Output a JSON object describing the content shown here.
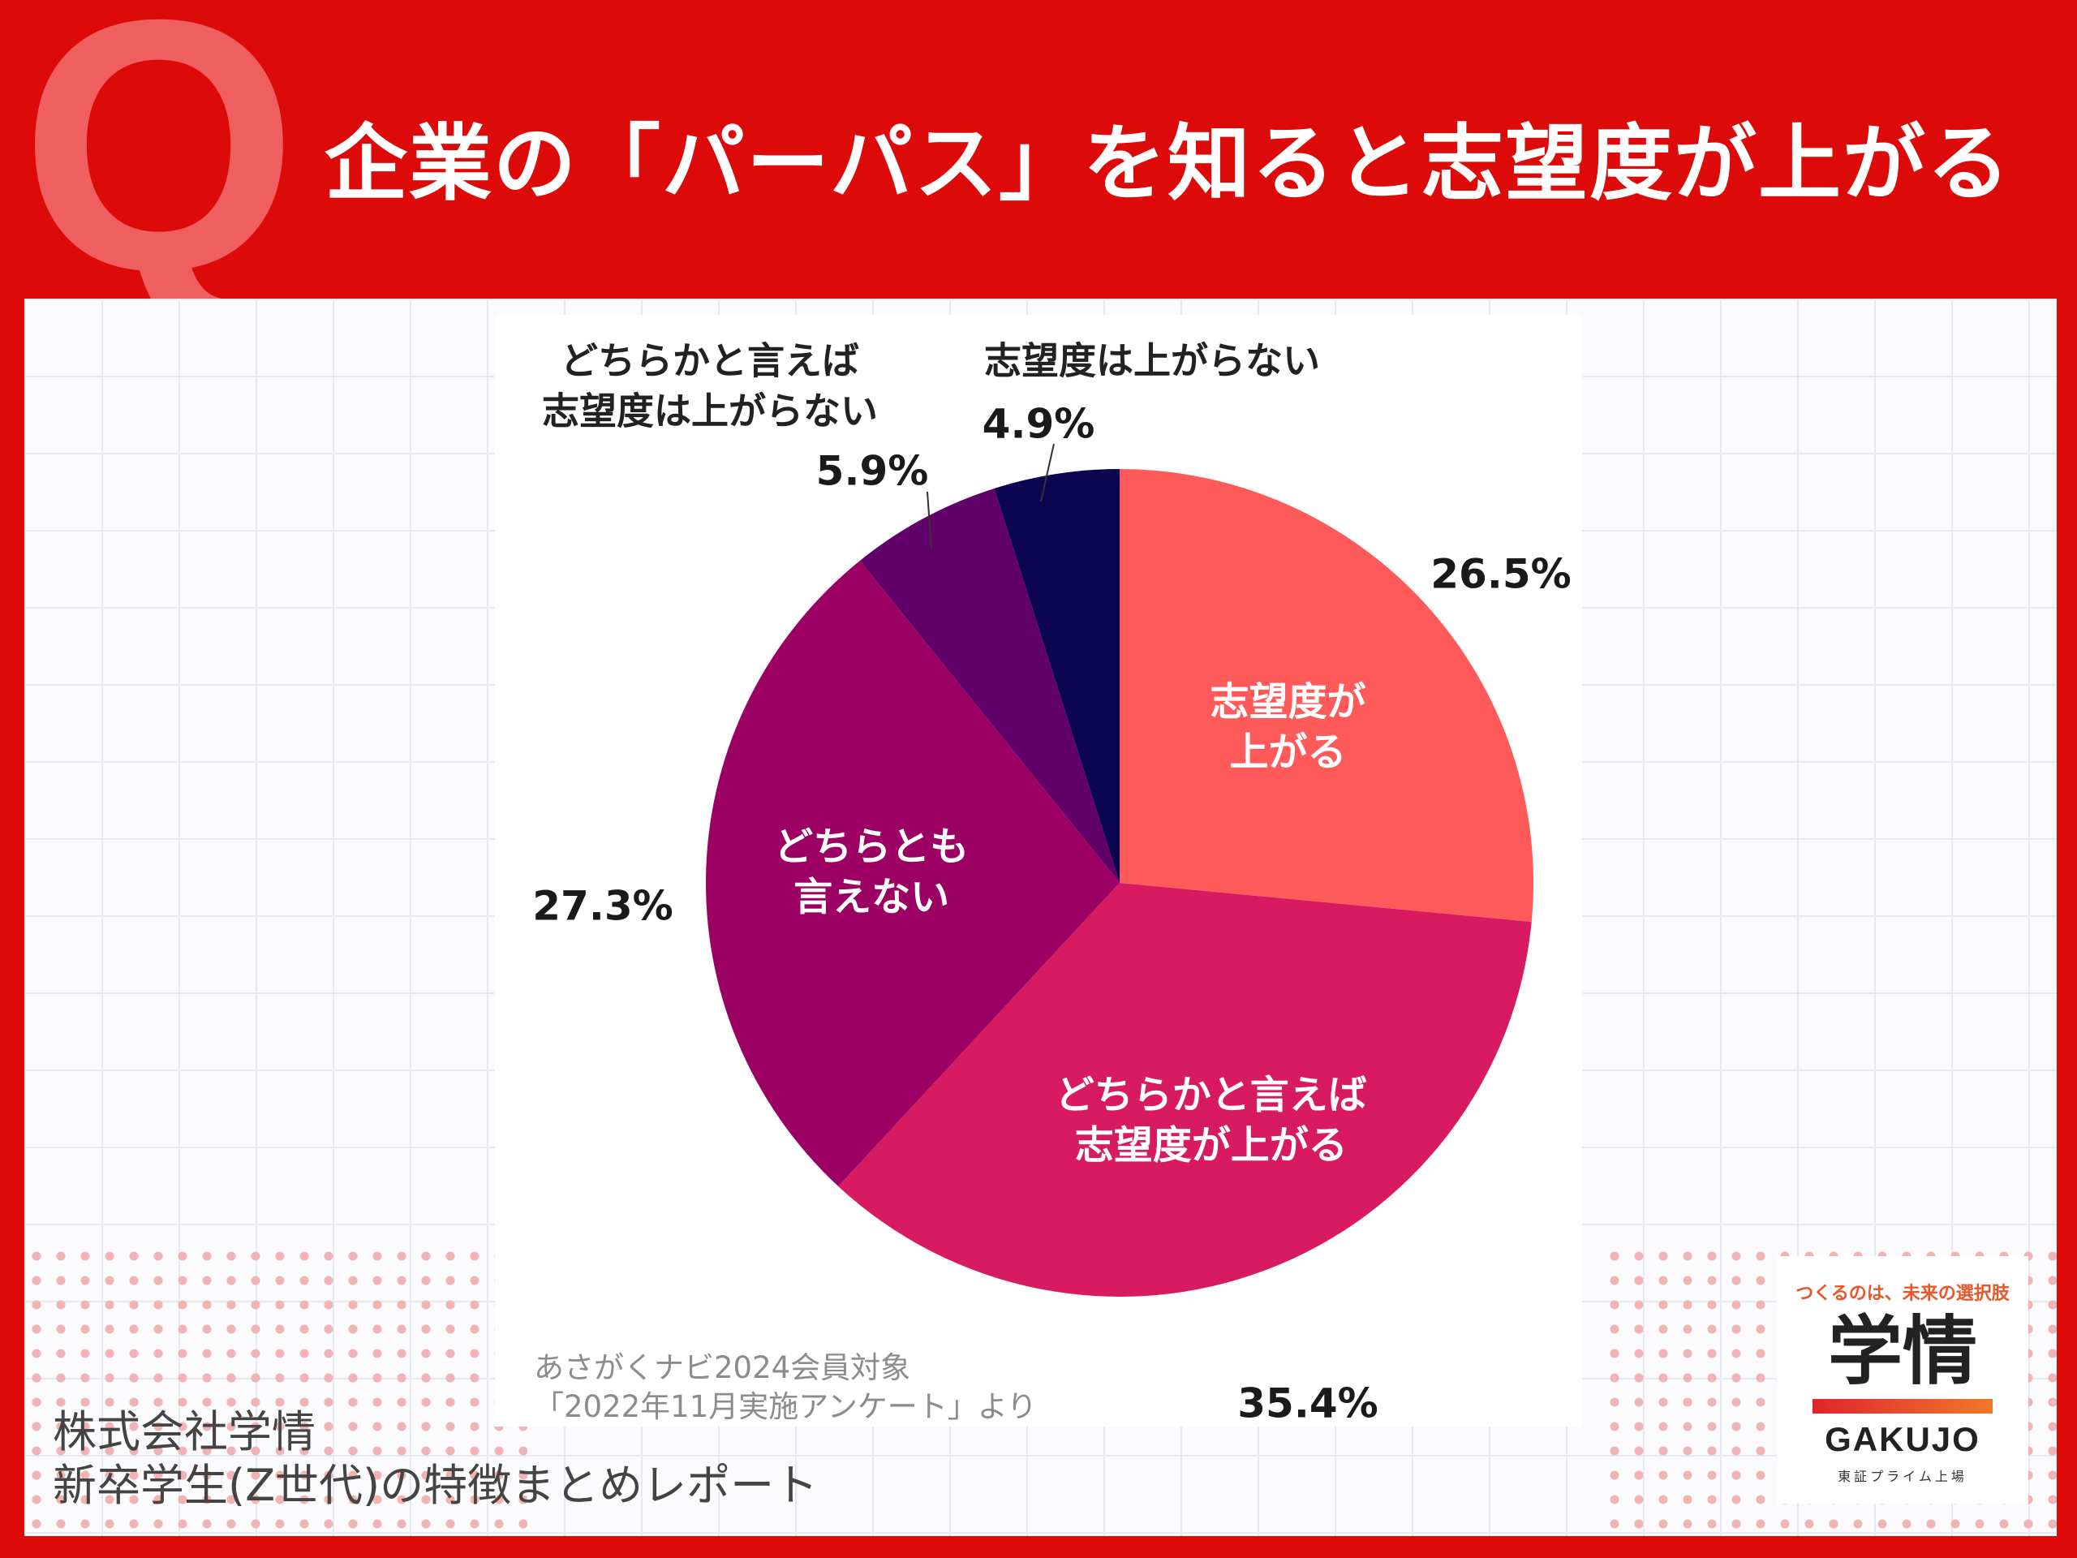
{
  "header": {
    "q_mark": "Q",
    "title": "企業の「パーパス」を知ると志望度が上がる"
  },
  "chart_data": {
    "type": "pie",
    "slices": [
      {
        "label": [
          "志望度が",
          "上がる"
        ],
        "value": 26.5,
        "value_label": "26.5%",
        "color": "#ff5a5a"
      },
      {
        "label": [
          "どちらかと言えば",
          "志望度が上がる"
        ],
        "value": 35.4,
        "value_label": "35.4%",
        "color": "#d81b60"
      },
      {
        "label": [
          "どちらとも",
          "言えない"
        ],
        "value": 27.3,
        "value_label": "27.3%",
        "color": "#9c0063"
      },
      {
        "label": [
          "どちらかと言えば",
          "志望度は上がらない"
        ],
        "value": 5.9,
        "value_label": "5.9%",
        "color": "#600068"
      },
      {
        "label": [
          "志望度は上がらない"
        ],
        "value": 4.9,
        "value_label": "4.9%",
        "color": "#0b0552"
      }
    ]
  },
  "source_note": {
    "line1": "あさがくナビ2024会員対象",
    "line2": "「2022年11月実施アンケート」より"
  },
  "footer": {
    "line1": "株式会社学情",
    "line2": "新卒学生(Z世代)の特徴まとめレポート"
  },
  "logo": {
    "tagline": "つくるのは、未来の選択肢",
    "mark": "学情",
    "wordmark": "GAKUJO",
    "sub": "東証プライム上場"
  }
}
